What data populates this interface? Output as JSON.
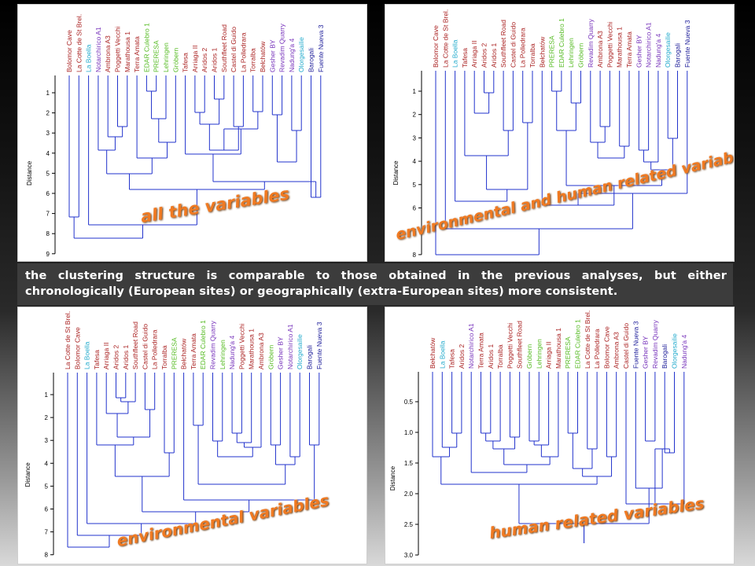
{
  "colors": {
    "tree_line": "#2233cc",
    "title_orange": "#f07a22",
    "label_red": "#aa2222",
    "label_cyan": "#22aacc",
    "label_purple": "#7733bb",
    "label_green": "#55bb22",
    "label_navy": "#1c1c99"
  },
  "caption": "the clustering structure is comparable to those obtained in the previous analyses, but either chronologically (European sites) or geographically (extra-European sites) more consistent.",
  "panels": [
    {
      "id": "all",
      "title": "all the variables",
      "ylabel": "Distance",
      "ticks": [
        "1",
        "2",
        "3",
        "4",
        "5",
        "6",
        "7",
        "8",
        "9"
      ],
      "leaves": [
        {
          "label": "Bolomor Cave",
          "color": "red"
        },
        {
          "label": "La Cotte de St Brel.",
          "color": "red"
        },
        {
          "label": "La Boella",
          "color": "cyan"
        },
        {
          "label": "Notarchirico A1",
          "color": "purple"
        },
        {
          "label": "Ambrona A3",
          "color": "red"
        },
        {
          "label": "Poggetti Vecchi",
          "color": "red"
        },
        {
          "label": "Marathousa 1",
          "color": "red"
        },
        {
          "label": "Terra Amata",
          "color": "red"
        },
        {
          "label": "EDAR Culebro 1",
          "color": "green"
        },
        {
          "label": "PRERESA",
          "color": "green"
        },
        {
          "label": "Lehringen",
          "color": "green"
        },
        {
          "label": "Gröbern",
          "color": "green"
        },
        {
          "label": "Tafesa",
          "color": "red"
        },
        {
          "label": "Arriaga II",
          "color": "red"
        },
        {
          "label": "Aridos 2",
          "color": "red"
        },
        {
          "label": "Aridos 1",
          "color": "red"
        },
        {
          "label": "Southfleet Road",
          "color": "red"
        },
        {
          "label": "Castel di Guido",
          "color": "red"
        },
        {
          "label": "La Polledrara",
          "color": "red"
        },
        {
          "label": "Torralba",
          "color": "red"
        },
        {
          "label": "Bełchatów",
          "color": "red"
        },
        {
          "label": "Gesher BY",
          "color": "purple"
        },
        {
          "label": "Revadim Quarry",
          "color": "purple"
        },
        {
          "label": "Nadung'a 4",
          "color": "purple"
        },
        {
          "label": "Olorgesailie",
          "color": "cyan"
        },
        {
          "label": "Barogali",
          "color": "navy"
        },
        {
          "label": "Fuente Nueva 3",
          "color": "navy"
        }
      ]
    },
    {
      "id": "envhuman",
      "title": "environmental and human related variables",
      "ylabel": "Distance",
      "ticks": [
        "1",
        "2",
        "3",
        "4",
        "5",
        "6",
        "7",
        "8"
      ],
      "leaves": [
        {
          "label": "Bolomor Cave",
          "color": "red"
        },
        {
          "label": "La Cotte de St Brel.",
          "color": "red"
        },
        {
          "label": "La Boella",
          "color": "cyan"
        },
        {
          "label": "Tafesa",
          "color": "red"
        },
        {
          "label": "Arriaga II",
          "color": "red"
        },
        {
          "label": "Aridos 2",
          "color": "red"
        },
        {
          "label": "Aridos 1",
          "color": "red"
        },
        {
          "label": "Southfleet Road",
          "color": "red"
        },
        {
          "label": "Castel di Guido",
          "color": "red"
        },
        {
          "label": "La Polledrara",
          "color": "red"
        },
        {
          "label": "Torralba",
          "color": "red"
        },
        {
          "label": "Bełchatów",
          "color": "red"
        },
        {
          "label": "PRERESA",
          "color": "green"
        },
        {
          "label": "EDAR Culebro 1",
          "color": "green"
        },
        {
          "label": "Lehringen",
          "color": "green"
        },
        {
          "label": "Gröbern",
          "color": "green"
        },
        {
          "label": "Revadim Quarry",
          "color": "purple"
        },
        {
          "label": "Ambrona A3",
          "color": "red"
        },
        {
          "label": "Poggetti Vecchi",
          "color": "red"
        },
        {
          "label": "Marathousa 1",
          "color": "red"
        },
        {
          "label": "Terra Amata",
          "color": "red"
        },
        {
          "label": "Gesher BY",
          "color": "purple"
        },
        {
          "label": "Notarchirico A1",
          "color": "purple"
        },
        {
          "label": "Nadung'a 4",
          "color": "purple"
        },
        {
          "label": "Olorgesailie",
          "color": "cyan"
        },
        {
          "label": "Barogali",
          "color": "navy"
        },
        {
          "label": "Fuente Nueva 3",
          "color": "navy"
        }
      ]
    },
    {
      "id": "env",
      "title": "environmental variables",
      "ylabel": "Distance",
      "ticks": [
        "1",
        "2",
        "3",
        "4",
        "5",
        "6",
        "7",
        "8"
      ],
      "leaves": [
        {
          "label": "La Cotte de St Brel.",
          "color": "red"
        },
        {
          "label": "Bolomor Cave",
          "color": "red"
        },
        {
          "label": "La Boella",
          "color": "cyan"
        },
        {
          "label": "Tafesa",
          "color": "red"
        },
        {
          "label": "Arriaga II",
          "color": "red"
        },
        {
          "label": "Aridos 2",
          "color": "red"
        },
        {
          "label": "Aridos 1",
          "color": "red"
        },
        {
          "label": "Southfleet Road",
          "color": "red"
        },
        {
          "label": "Castel di Guido",
          "color": "red"
        },
        {
          "label": "La Polledrara",
          "color": "red"
        },
        {
          "label": "Torralba",
          "color": "red"
        },
        {
          "label": "PRERESA",
          "color": "green"
        },
        {
          "label": "Bełchatów",
          "color": "red"
        },
        {
          "label": "Terra Amata",
          "color": "red"
        },
        {
          "label": "EDAR Culebro 1",
          "color": "green"
        },
        {
          "label": "Revadim Quarry",
          "color": "purple"
        },
        {
          "label": "Lehringen",
          "color": "green"
        },
        {
          "label": "Nadung'a 4",
          "color": "purple"
        },
        {
          "label": "Poggetti Vecchi",
          "color": "red"
        },
        {
          "label": "Marathousa 1",
          "color": "red"
        },
        {
          "label": "Ambrona A3",
          "color": "red"
        },
        {
          "label": "Gröbern",
          "color": "green"
        },
        {
          "label": "Gesher BY",
          "color": "purple"
        },
        {
          "label": "Notarchirico A1",
          "color": "purple"
        },
        {
          "label": "Olorgesailie",
          "color": "cyan"
        },
        {
          "label": "Barogali",
          "color": "navy"
        },
        {
          "label": "Fuente Nueva 3",
          "color": "navy"
        }
      ]
    },
    {
      "id": "human",
      "title": "human related variables",
      "ylabel": "Distance",
      "ticks": [
        "0.5",
        "1.0",
        "1.5",
        "2.0",
        "2.5",
        "3.0"
      ],
      "leaves": [
        {
          "label": "Bełchatów",
          "color": "red"
        },
        {
          "label": "La Boella",
          "color": "cyan"
        },
        {
          "label": "Tafesa",
          "color": "red"
        },
        {
          "label": "Aridos 2",
          "color": "red"
        },
        {
          "label": "Notarchirico A1",
          "color": "purple"
        },
        {
          "label": "Terra Amata",
          "color": "red"
        },
        {
          "label": "Aridos 1",
          "color": "red"
        },
        {
          "label": "Torralba",
          "color": "red"
        },
        {
          "label": "Poggetti Vecchi",
          "color": "red"
        },
        {
          "label": "Southfleet Road",
          "color": "red"
        },
        {
          "label": "Gröbern",
          "color": "green"
        },
        {
          "label": "Lehringen",
          "color": "green"
        },
        {
          "label": "Arriaga II",
          "color": "red"
        },
        {
          "label": "Marathousa 1",
          "color": "red"
        },
        {
          "label": "PRERESA",
          "color": "green"
        },
        {
          "label": "EDAR Culebro 1",
          "color": "green"
        },
        {
          "label": "La Cotte de St Brel.",
          "color": "red"
        },
        {
          "label": "La Polledrara",
          "color": "red"
        },
        {
          "label": "Bolomor Cave",
          "color": "red"
        },
        {
          "label": "Ambrona A3",
          "color": "red"
        },
        {
          "label": "Castel di Guido",
          "color": "red"
        },
        {
          "label": "Fuente Nueva 3",
          "color": "navy"
        },
        {
          "label": "Gesher BY",
          "color": "purple"
        },
        {
          "label": "Revadim Quarry",
          "color": "purple"
        },
        {
          "label": "Barogali",
          "color": "navy"
        },
        {
          "label": "Olorgesailie",
          "color": "cyan"
        },
        {
          "label": "Nadung'a 4",
          "color": "purple"
        }
      ]
    }
  ]
}
